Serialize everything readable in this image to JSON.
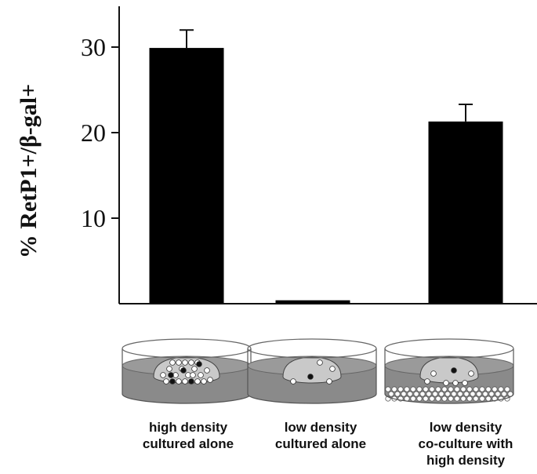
{
  "chart_data": {
    "type": "bar",
    "ylabel": "% RetP1+/β-gal+",
    "xlabel": "",
    "title": "",
    "ylim": [
      0,
      35
    ],
    "yticks": [
      10,
      20,
      30
    ],
    "categories": [
      [
        "high density",
        "cultured alone"
      ],
      [
        "low density",
        "cultured alone"
      ],
      [
        "low density",
        "co-culture with",
        "high density"
      ]
    ],
    "values": [
      29.9,
      0.4,
      21.3
    ],
    "errors": [
      2.1,
      0,
      2.0
    ],
    "bar_color": "#000000",
    "grid": false,
    "legend": "none",
    "illustrations": [
      "high-density-dish",
      "low-density-dish",
      "co-culture-dish"
    ]
  }
}
